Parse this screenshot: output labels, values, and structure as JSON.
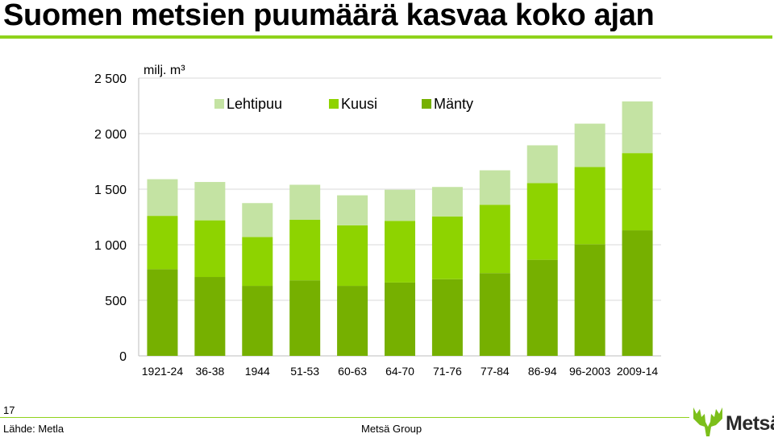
{
  "slide": {
    "title": "Suomen metsien puumäärä kasvaa koko ajan",
    "page_number": "17",
    "source": "Lähde: Metla",
    "company": "Metsä Group",
    "logo_text": "Metsä"
  },
  "colors": {
    "accent": "#8fd21b",
    "lehtipuu": "#c4e3a3",
    "kuusi": "#8ed300",
    "manty": "#76b000",
    "logo_green": "#7cbf1a"
  },
  "chart_data": {
    "type": "bar",
    "stacked": true,
    "unit_label": "milj. m³",
    "categories": [
      "1921-24",
      "36-38",
      "1944",
      "51-53",
      "60-63",
      "64-70",
      "71-76",
      "77-84",
      "86-94",
      "96-2003",
      "2009-14"
    ],
    "series": [
      {
        "name": "Mänty",
        "values": [
          780,
          710,
          630,
          680,
          630,
          660,
          690,
          745,
          865,
          1005,
          1130
        ]
      },
      {
        "name": "Kuusi",
        "values": [
          480,
          510,
          440,
          545,
          545,
          555,
          565,
          615,
          690,
          695,
          695
        ]
      },
      {
        "name": "Lehtipuu",
        "values": [
          330,
          345,
          305,
          315,
          270,
          280,
          265,
          310,
          340,
          390,
          465
        ]
      }
    ],
    "legend_order": [
      "Lehtipuu",
      "Kuusi",
      "Mänty"
    ],
    "legend_position": "top",
    "ylim": [
      0,
      2500
    ],
    "yticks": [
      0,
      500,
      1000,
      1500,
      2000,
      2500
    ],
    "ytick_labels": [
      "0",
      "500",
      "1 000",
      "1 500",
      "2 000",
      "2 500"
    ],
    "grid": true
  }
}
